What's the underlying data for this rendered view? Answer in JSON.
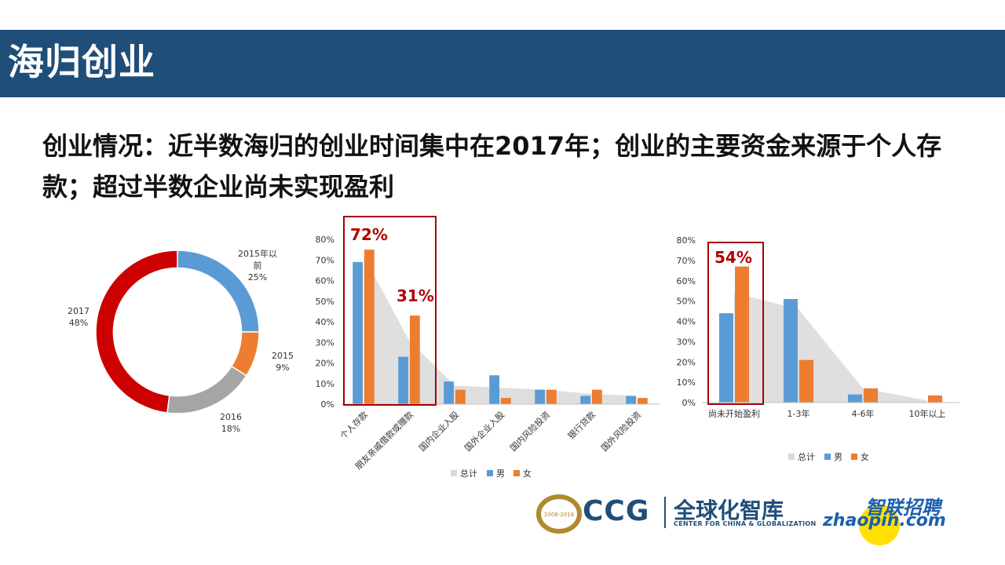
{
  "header": {
    "title": "海归创业"
  },
  "subtitle": "创业情况：近半数海归的创业时间集中在2017年；创业的主要资金来源于个人存款；超过半数企业尚未实现盈利",
  "chart_data": [
    {
      "type": "pie",
      "donut": true,
      "slices": [
        {
          "label": "2015年以前",
          "pct_label": "25%",
          "value": 25,
          "color": "#5b9bd5"
        },
        {
          "label": "2015",
          "pct_label": "9%",
          "value": 9,
          "color": "#ed7d31"
        },
        {
          "label": "2016",
          "pct_label": "18%",
          "value": 18,
          "color": "#a5a5a5"
        },
        {
          "label": "2017",
          "pct_label": "48%",
          "value": 48,
          "color": "#cc0000"
        }
      ]
    },
    {
      "type": "bar",
      "categories": [
        "个人存款",
        "朋友亲戚借款或赠款",
        "国内企业入股",
        "国外企业入股",
        "国内风险投资",
        "银行贷款",
        "国外风险投资"
      ],
      "series": [
        {
          "name": "总计",
          "kind": "area",
          "color": "#d9d9d9",
          "values": [
            72,
            31,
            9,
            8,
            7,
            5,
            4
          ]
        },
        {
          "name": "男",
          "kind": "bar",
          "color": "#5b9bd5",
          "values": [
            69,
            23,
            11,
            14,
            7,
            4,
            4
          ]
        },
        {
          "name": "女",
          "kind": "bar",
          "color": "#ed7d31",
          "values": [
            75,
            43,
            7,
            3,
            7,
            7,
            3
          ]
        }
      ],
      "yticks": [
        "0%",
        "10%",
        "20%",
        "30%",
        "40%",
        "50%",
        "60%",
        "70%",
        "80%"
      ],
      "ylim": [
        0,
        80
      ],
      "highlight_labels": [
        "72%",
        "31%"
      ],
      "legend": [
        "总计",
        "男",
        "女"
      ]
    },
    {
      "type": "bar",
      "categories": [
        "尚未开始盈利",
        "1-3年",
        "4-6年",
        "10年以上"
      ],
      "series": [
        {
          "name": "总计",
          "kind": "area",
          "color": "#d9d9d9",
          "values": [
            54,
            46,
            7,
            1
          ]
        },
        {
          "name": "男",
          "kind": "bar",
          "color": "#5b9bd5",
          "values": [
            44,
            51,
            4,
            0
          ]
        },
        {
          "name": "女",
          "kind": "bar",
          "color": "#ed7d31",
          "values": [
            67,
            21,
            7,
            3.5
          ]
        }
      ],
      "yticks": [
        "0%",
        "10%",
        "20%",
        "30%",
        "40%",
        "50%",
        "60%",
        "70%",
        "80%"
      ],
      "ylim": [
        0,
        80
      ],
      "highlight_labels": [
        "54%"
      ],
      "legend": [
        "总计",
        "男",
        "女"
      ]
    }
  ],
  "logos": {
    "ccg": "CCG",
    "ccg_cn": "全球化智库",
    "ccg_en": "CENTER FOR CHINA & GLOBALIZATION",
    "ccg_badge": "2008-2018",
    "zhaopin_cn": "智联招聘",
    "zhaopin_en": "zhaopin.com"
  }
}
